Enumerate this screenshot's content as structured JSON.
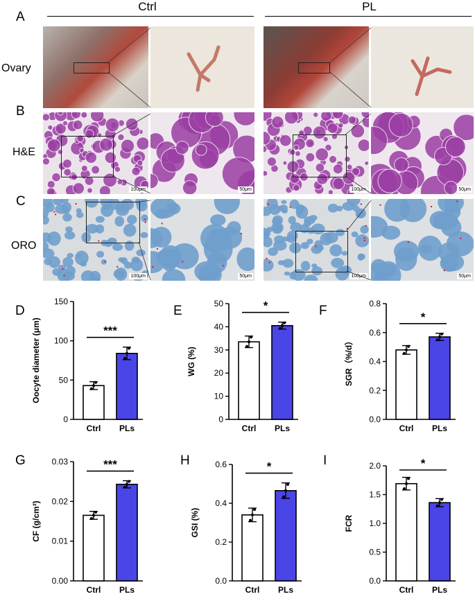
{
  "figure": {
    "groups": [
      "Ctrl",
      "PL"
    ],
    "rows": [
      {
        "letter": "A",
        "label": "Ovary"
      },
      {
        "letter": "B",
        "label": "H&E"
      },
      {
        "letter": "C",
        "label": "ORO"
      }
    ],
    "scale_bars": {
      "overview": "100μm",
      "zoom": "50μm"
    }
  },
  "colors": {
    "ctrl_bar": "#ffffff",
    "pl_bar": "#4a45e6",
    "he_stain": "#9b3fa4",
    "oro_stain": "#6f9fcc"
  },
  "chart_data": [
    {
      "letter": "D",
      "type": "bar",
      "categories": [
        "Ctrl",
        "PLs"
      ],
      "values": [
        43,
        84
      ],
      "errors": [
        5,
        8
      ],
      "ylabel": "Oocyte diameter (μm)",
      "ylim": [
        0,
        150
      ],
      "yticks": [
        "0",
        "50",
        "100",
        "150"
      ],
      "significance": "***"
    },
    {
      "letter": "E",
      "type": "bar",
      "categories": [
        "Ctrl",
        "PLs"
      ],
      "values": [
        33.5,
        40.5
      ],
      "errors": [
        2.5,
        1.5
      ],
      "ylabel": "WG (%)",
      "ylim": [
        0,
        50
      ],
      "yticks": [
        "0",
        "10",
        "20",
        "30",
        "40",
        "50"
      ],
      "significance": "*"
    },
    {
      "letter": "F",
      "type": "bar",
      "categories": [
        "Ctrl",
        "PLs"
      ],
      "values": [
        0.48,
        0.57
      ],
      "errors": [
        0.03,
        0.025
      ],
      "ylabel": "SGR（%/d）",
      "ylim": [
        0,
        0.8
      ],
      "yticks": [
        "0.0",
        "0.2",
        "0.4",
        "0.6",
        "0.8"
      ],
      "significance": "*"
    },
    {
      "letter": "G",
      "type": "bar",
      "categories": [
        "Ctrl",
        "PLs"
      ],
      "values": [
        0.0165,
        0.0243
      ],
      "errors": [
        0.001,
        0.0009
      ],
      "ylabel": "CF (g/cm³)",
      "ylim": [
        0,
        0.03
      ],
      "yticks": [
        "0.00",
        "0.01",
        "0.02",
        "0.03"
      ],
      "significance": "***"
    },
    {
      "letter": "H",
      "type": "bar",
      "categories": [
        "Ctrl",
        "PLs"
      ],
      "values": [
        0.34,
        0.465
      ],
      "errors": [
        0.035,
        0.04
      ],
      "ylabel": "GSI (%)",
      "ylim": [
        0,
        0.6
      ],
      "yticks": [
        "0.0",
        "0.2",
        "0.4",
        "0.6"
      ],
      "significance": "*"
    },
    {
      "letter": "I",
      "type": "bar",
      "categories": [
        "Ctrl",
        "PLs"
      ],
      "values": [
        1.69,
        1.36
      ],
      "errors": [
        0.11,
        0.07
      ],
      "ylabel": "FCR",
      "ylim": [
        0,
        2.0
      ],
      "yticks": [
        "0.0",
        "0.5",
        "1.0",
        "1.5",
        "2.0"
      ],
      "significance": "*"
    }
  ]
}
